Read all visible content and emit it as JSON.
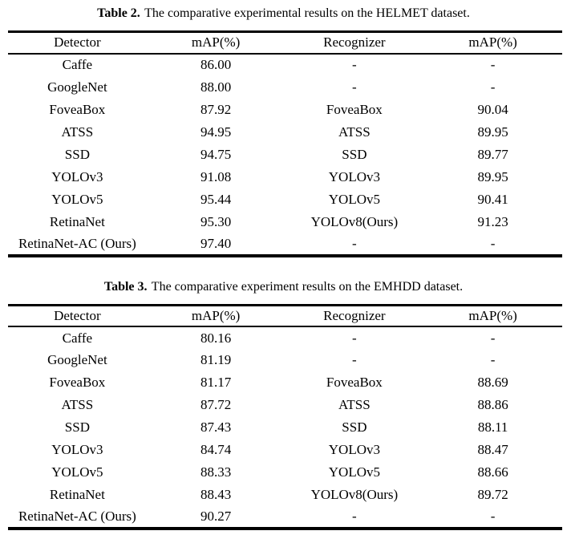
{
  "page": {
    "background_color": "#ffffff",
    "text_color": "#000000",
    "rule_color": "#000000"
  },
  "tables": [
    {
      "caption_label": "Table 2.",
      "caption_text": "The comparative experimental results on the HELMET dataset.",
      "columns": [
        "Detector",
        "mAP(%)",
        "Recognizer",
        "mAP(%)"
      ],
      "rows": [
        [
          "Caffe",
          "86.00",
          "-",
          "-"
        ],
        [
          "GoogleNet",
          "88.00",
          "-",
          "-"
        ],
        [
          "FoveaBox",
          "87.92",
          "FoveaBox",
          "90.04"
        ],
        [
          "ATSS",
          "94.95",
          "ATSS",
          "89.95"
        ],
        [
          "SSD",
          "94.75",
          "SSD",
          "89.77"
        ],
        [
          "YOLOv3",
          "91.08",
          "YOLOv3",
          "89.95"
        ],
        [
          "YOLOv5",
          "95.44",
          "YOLOv5",
          "90.41"
        ],
        [
          "RetinaNet",
          "95.30",
          "YOLOv8(Ours)",
          "91.23"
        ],
        [
          "RetinaNet-AC (Ours)",
          "97.40",
          "-",
          "-"
        ]
      ]
    },
    {
      "caption_label": "Table 3.",
      "caption_text": "The comparative experiment results on the EMHDD dataset.",
      "columns": [
        "Detector",
        "mAP(%)",
        "Recognizer",
        "mAP(%)"
      ],
      "rows": [
        [
          "Caffe",
          "80.16",
          "-",
          "-"
        ],
        [
          "GoogleNet",
          "81.19",
          "-",
          "-"
        ],
        [
          "FoveaBox",
          "81.17",
          "FoveaBox",
          "88.69"
        ],
        [
          "ATSS",
          "87.72",
          "ATSS",
          "88.86"
        ],
        [
          "SSD",
          "87.43",
          "SSD",
          "88.11"
        ],
        [
          "YOLOv3",
          "84.74",
          "YOLOv3",
          "88.47"
        ],
        [
          "YOLOv5",
          "88.33",
          "YOLOv5",
          "88.66"
        ],
        [
          "RetinaNet",
          "88.43",
          "YOLOv8(Ours)",
          "89.72"
        ],
        [
          "RetinaNet-AC (Ours)",
          "90.27",
          "-",
          "-"
        ]
      ]
    }
  ]
}
